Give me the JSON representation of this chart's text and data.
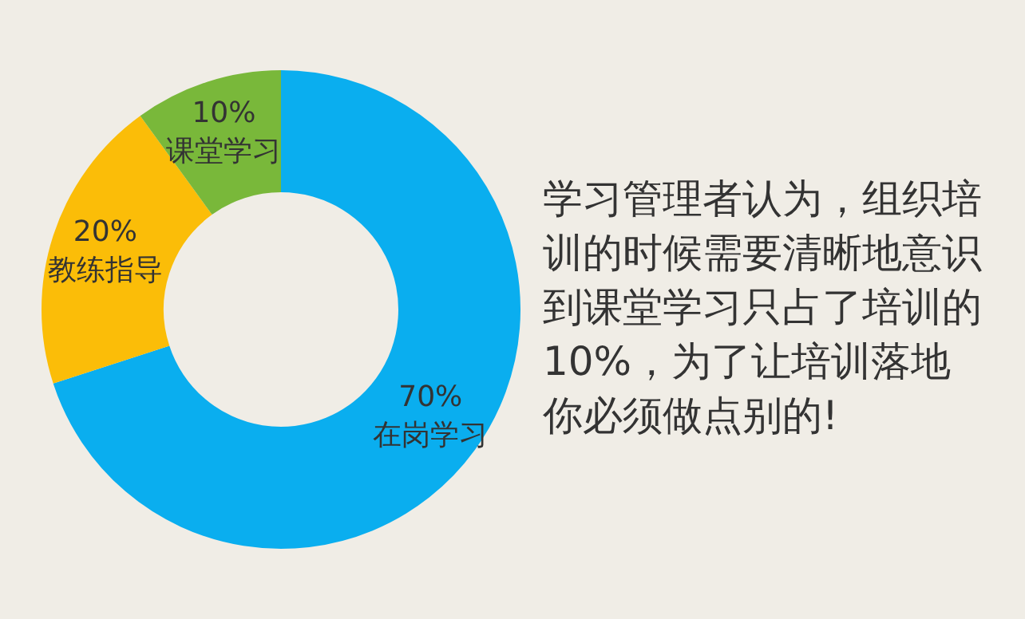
{
  "chart_data": {
    "type": "donut",
    "categories": [
      "在岗学习",
      "教练指导",
      "课堂学习"
    ],
    "values": [
      70,
      20,
      10
    ],
    "colors": [
      "#0aaeef",
      "#fbbd08",
      "#79b83a"
    ],
    "value_labels": [
      "70%",
      "20%",
      "10%"
    ],
    "legend": false,
    "annotations": [
      "学习管理者认为，组织培训的时候需要清晰地意识到课堂学习只占了培训的10%，为了让培训落地你必须做点别的!"
    ]
  }
}
